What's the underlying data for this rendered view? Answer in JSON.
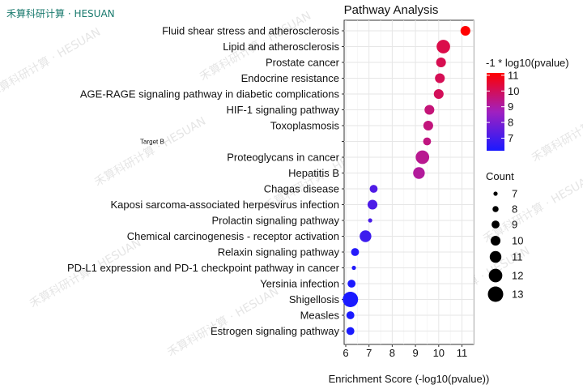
{
  "brand": "禾算科研计算 · HESUAN",
  "watermark": "禾算科研计算 · HESUAN",
  "chart_data": {
    "type": "scatter",
    "title": "Pathway Analysis",
    "xlabel": "Enrichment Score (-log10(pvalue))",
    "ylabel": "",
    "xlim": [
      6,
      11.5
    ],
    "xticks": [
      6,
      7,
      8,
      9,
      10,
      11
    ],
    "grid": true,
    "categories": [
      "Fluid shear stress and atherosclerosis",
      "Lipid and atherosclerosis",
      "Prostate cancer",
      "Endocrine resistance",
      "AGE-RAGE signaling pathway in diabetic complications",
      "HIF-1 signaling pathway",
      "Toxoplasmosis",
      "Target B",
      "Proteoglycans in cancer",
      "Hepatitis B",
      "Chagas disease",
      "Kaposi sarcoma-associated herpesvirus infection",
      "Prolactin signaling pathway",
      "Chemical carcinogenesis - receptor activation",
      "Relaxin signaling pathway",
      "PD-L1 expression and PD-1 checkpoint pathway in cancer",
      "Yersinia infection",
      "Shigellosis",
      "Measles",
      "Estrogen signaling pathway"
    ],
    "small_label_categories": [
      "Target B"
    ],
    "points": [
      {
        "x": 11.15,
        "count": 10
      },
      {
        "x": 10.2,
        "count": 12
      },
      {
        "x": 10.1,
        "count": 10
      },
      {
        "x": 10.05,
        "count": 10
      },
      {
        "x": 10.0,
        "count": 10
      },
      {
        "x": 9.6,
        "count": 10
      },
      {
        "x": 9.55,
        "count": 10
      },
      {
        "x": 9.5,
        "count": 9
      },
      {
        "x": 9.3,
        "count": 12
      },
      {
        "x": 9.15,
        "count": 11
      },
      {
        "x": 7.2,
        "count": 9
      },
      {
        "x": 7.15,
        "count": 10
      },
      {
        "x": 7.05,
        "count": 7
      },
      {
        "x": 6.85,
        "count": 11
      },
      {
        "x": 6.4,
        "count": 9
      },
      {
        "x": 6.35,
        "count": 7
      },
      {
        "x": 6.25,
        "count": 9
      },
      {
        "x": 6.2,
        "count": 13
      },
      {
        "x": 6.2,
        "count": 9
      },
      {
        "x": 6.2,
        "count": 9
      }
    ],
    "color_legend": {
      "title": "-1 * log10(pvalue)",
      "ticks": [
        7,
        8,
        9,
        10,
        11
      ],
      "range": [
        6.2,
        11.15
      ],
      "low_color": "#1a1aff",
      "mid_color": "#a020c0",
      "high_color": "#ff0000"
    },
    "size_legend": {
      "title": "Count",
      "values": [
        7,
        8,
        9,
        10,
        11,
        12,
        13
      ]
    }
  }
}
